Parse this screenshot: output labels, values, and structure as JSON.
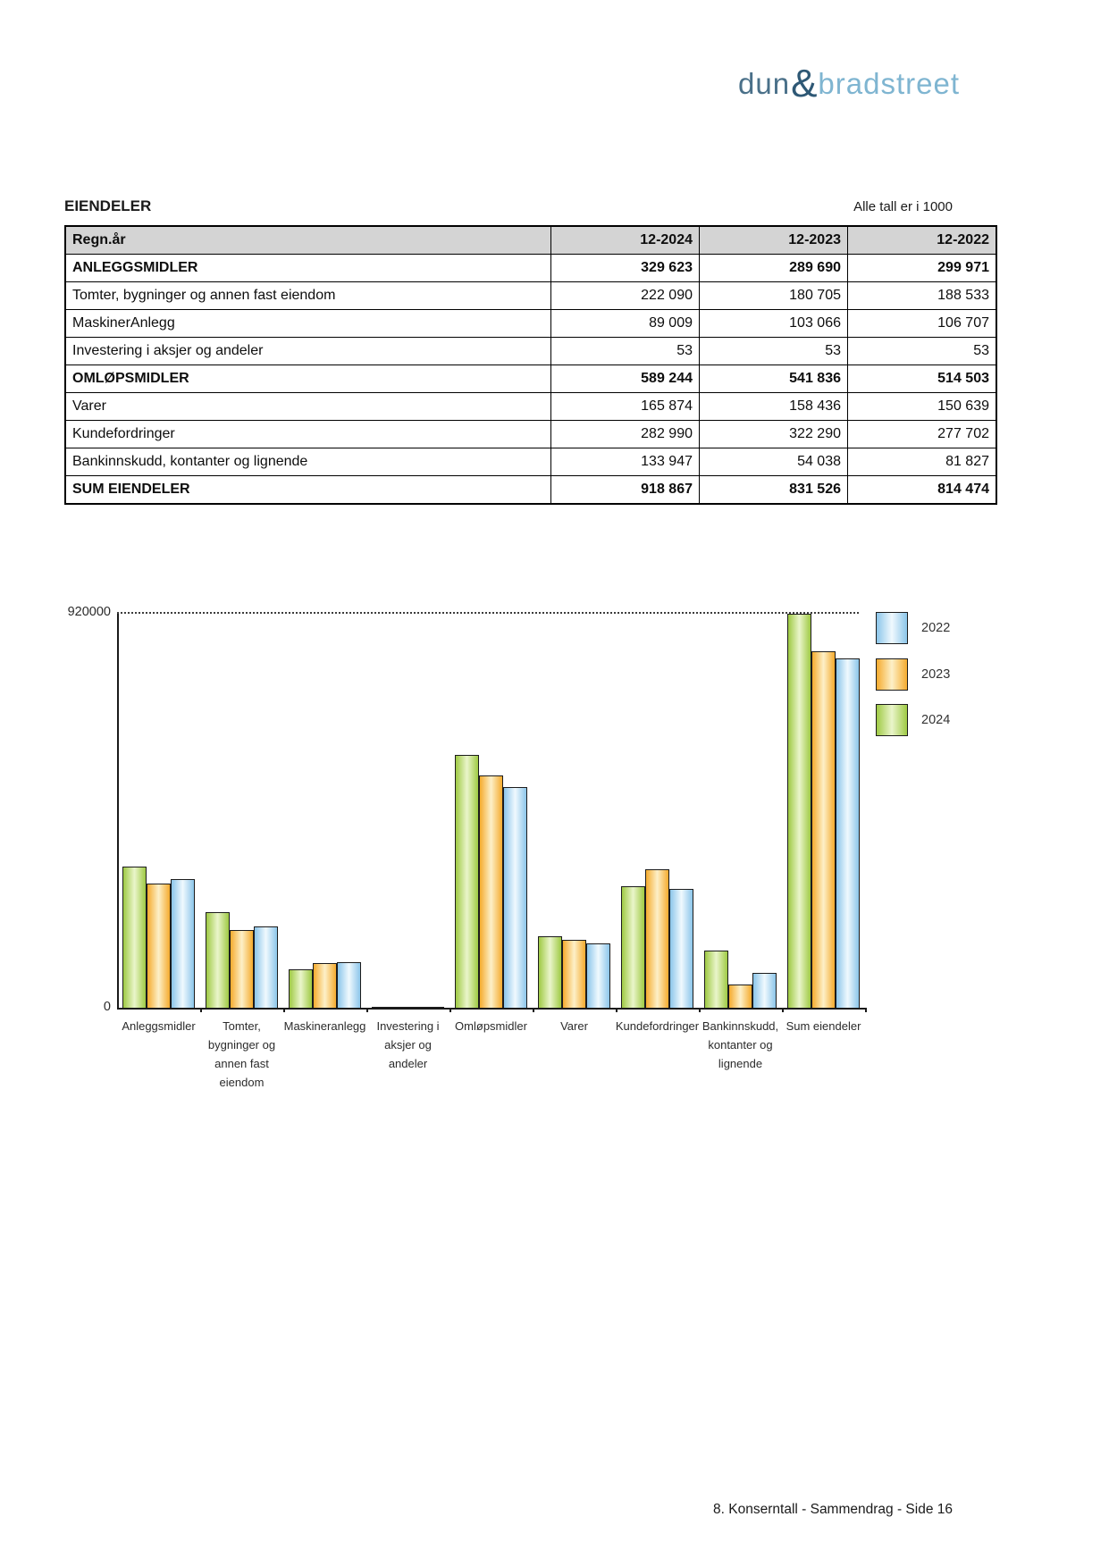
{
  "logo": {
    "dun": "dun",
    "amp": "&",
    "bradstreet": "bradstreet"
  },
  "section": {
    "title": "EIENDELER",
    "units_note": "Alle tall er i 1000"
  },
  "table": {
    "columns": [
      "Regn.år",
      "12-2024",
      "12-2023",
      "12-2022"
    ],
    "rows": [
      {
        "label": "ANLEGGSMIDLER",
        "values": [
          "329 623",
          "289 690",
          "299 971"
        ],
        "bold": true
      },
      {
        "label": "Tomter, bygninger og annen fast eiendom",
        "values": [
          "222 090",
          "180 705",
          "188 533"
        ],
        "bold": false
      },
      {
        "label": "MaskinerAnlegg",
        "values": [
          "89 009",
          "103 066",
          "106 707"
        ],
        "bold": false
      },
      {
        "label": "Investering i aksjer og andeler",
        "values": [
          "53",
          "53",
          "53"
        ],
        "bold": false
      },
      {
        "label": "OMLØPSMIDLER",
        "values": [
          "589 244",
          "541 836",
          "514 503"
        ],
        "bold": true
      },
      {
        "label": "Varer",
        "values": [
          "165 874",
          "158 436",
          "150 639"
        ],
        "bold": false
      },
      {
        "label": "Kundefordringer",
        "values": [
          "282 990",
          "322 290",
          "277 702"
        ],
        "bold": false
      },
      {
        "label": "Bankinnskudd, kontanter og lignende",
        "values": [
          "133 947",
          "54 038",
          "81 827"
        ],
        "bold": false
      },
      {
        "label": "SUM EIENDELER",
        "values": [
          "918 867",
          "831 526",
          "814 474"
        ],
        "bold": true
      }
    ]
  },
  "chart_data": {
    "type": "bar",
    "title": "",
    "xlabel": "",
    "ylabel": "",
    "ylim": [
      0,
      920000
    ],
    "yticks": [
      "920000",
      "0"
    ],
    "gridline_value": 920000,
    "grid": "single dotted gridline at top tick",
    "legend_position": "right",
    "categories": [
      "Anleggsmidler",
      "Tomter, bygninger og annen fast eiendom",
      "Maskineranlegg",
      "Investering i aksjer og andeler",
      "Omløpsmidler",
      "Varer",
      "Kundefordringer",
      "Bankinnskudd, kontanter og lignende",
      "Sum eiendeler"
    ],
    "tick_label_lines": [
      [
        "Anleggsmidler"
      ],
      [
        "Tomter,",
        "bygninger og",
        "annen fast",
        "eiendom"
      ],
      [
        "Maskineranlegg"
      ],
      [
        "Investering i",
        "aksjer og",
        "andeler"
      ],
      [
        "Omløpsmidler"
      ],
      [
        "Varer"
      ],
      [
        "Kundefordringer"
      ],
      [
        "Bankinnskudd,",
        "kontanter og",
        "lignende"
      ],
      [
        "Sum eiendeler"
      ]
    ],
    "series": [
      {
        "name": "2024",
        "edge_color": "#9fca44",
        "center_color": "#eaf5cb",
        "values": [
          329623,
          222090,
          89009,
          53,
          589244,
          165874,
          282990,
          133947,
          918867
        ]
      },
      {
        "name": "2023",
        "edge_color": "#f5ab2e",
        "center_color": "#fdf0c8",
        "values": [
          289690,
          180705,
          103066,
          53,
          541836,
          158436,
          322290,
          54038,
          831526
        ]
      },
      {
        "name": "2022",
        "edge_color": "#8cc6ea",
        "center_color": "#f0f9fe",
        "values": [
          299971,
          188533,
          106707,
          53,
          514503,
          150639,
          277702,
          81827,
          814474
        ]
      }
    ],
    "legend": [
      {
        "label": "2022"
      },
      {
        "label": "2023"
      },
      {
        "label": "2024"
      }
    ]
  },
  "footer": {
    "page_label": "8. Konserntall - Sammendrag - Side 16"
  },
  "colors": {
    "logo_dun": "#4a7089",
    "logo_amp": "#2e5875",
    "logo_bradstreet": "#7fb5d1",
    "table_header_bg": "#d4d4d4",
    "bar_2024_edge": "#9fca44",
    "bar_2023_edge": "#f5ab2e",
    "bar_2022_edge": "#8cc6ea"
  }
}
